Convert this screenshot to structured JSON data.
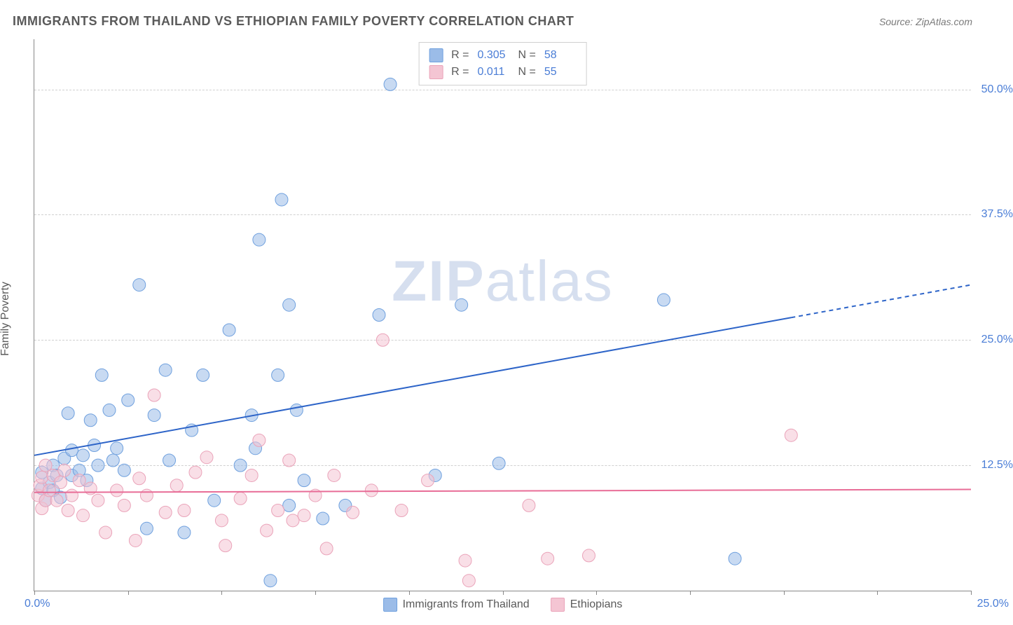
{
  "title": "IMMIGRANTS FROM THAILAND VS ETHIOPIAN FAMILY POVERTY CORRELATION CHART",
  "source": "Source: ZipAtlas.com",
  "watermark_bold": "ZIP",
  "watermark_rest": "atlas",
  "y_axis_label": "Family Poverty",
  "chart": {
    "type": "scatter",
    "background_color": "#ffffff",
    "grid_color": "#d0d0d0",
    "axis_color": "#888888",
    "tick_font_color": "#4a7dd6",
    "label_font_color": "#5a5a5a",
    "title_font_color": "#5a5a5a",
    "title_fontsize": 18,
    "label_fontsize": 16,
    "tick_fontsize": 16,
    "xlim": [
      0,
      25
    ],
    "ylim": [
      0,
      55
    ],
    "x_tick_step": 2.5,
    "y_ticks": [
      12.5,
      25.0,
      37.5,
      50.0
    ],
    "x_min_label": "0.0%",
    "x_max_label": "25.0%",
    "y_tick_labels": [
      "12.5%",
      "25.0%",
      "37.5%",
      "50.0%"
    ],
    "marker_radius": 9,
    "marker_opacity": 0.55,
    "trend_line_width": 2,
    "series": [
      {
        "name": "Immigrants from Thailand",
        "color": "#9bbce8",
        "stroke": "#6fa0de",
        "trend_color": "#2d64c8",
        "R": "0.305",
        "N": "58",
        "trend": {
          "y_at_x0": 13.5,
          "y_at_x25": 30.5,
          "dash_from_x": 20.2
        },
        "points": [
          [
            0.2,
            10.2
          ],
          [
            0.2,
            11.8
          ],
          [
            0.3,
            9.0
          ],
          [
            0.4,
            10.8
          ],
          [
            0.5,
            12.5
          ],
          [
            0.5,
            10.0
          ],
          [
            0.6,
            11.5
          ],
          [
            0.7,
            9.3
          ],
          [
            0.8,
            13.2
          ],
          [
            0.9,
            17.7
          ],
          [
            1.0,
            11.5
          ],
          [
            1.0,
            14.0
          ],
          [
            1.2,
            12.0
          ],
          [
            1.3,
            13.5
          ],
          [
            1.4,
            11.0
          ],
          [
            1.5,
            17.0
          ],
          [
            1.6,
            14.5
          ],
          [
            1.7,
            12.5
          ],
          [
            1.8,
            21.5
          ],
          [
            2.0,
            18.0
          ],
          [
            2.1,
            13.0
          ],
          [
            2.2,
            14.2
          ],
          [
            2.4,
            12.0
          ],
          [
            2.5,
            19.0
          ],
          [
            2.8,
            30.5
          ],
          [
            3.0,
            6.2
          ],
          [
            3.2,
            17.5
          ],
          [
            3.5,
            22.0
          ],
          [
            3.6,
            13.0
          ],
          [
            4.0,
            5.8
          ],
          [
            4.2,
            16.0
          ],
          [
            4.5,
            21.5
          ],
          [
            4.8,
            9.0
          ],
          [
            5.2,
            26.0
          ],
          [
            5.5,
            12.5
          ],
          [
            5.8,
            17.5
          ],
          [
            5.9,
            14.2
          ],
          [
            6.0,
            35.0
          ],
          [
            6.3,
            1.0
          ],
          [
            6.5,
            21.5
          ],
          [
            6.6,
            39.0
          ],
          [
            6.8,
            8.5
          ],
          [
            6.8,
            28.5
          ],
          [
            7.0,
            18.0
          ],
          [
            7.2,
            11.0
          ],
          [
            7.7,
            7.2
          ],
          [
            8.3,
            8.5
          ],
          [
            9.2,
            27.5
          ],
          [
            9.5,
            50.5
          ],
          [
            10.7,
            11.5
          ],
          [
            11.4,
            28.5
          ],
          [
            12.4,
            12.7
          ],
          [
            16.8,
            29.0
          ],
          [
            18.7,
            3.2
          ]
        ]
      },
      {
        "name": "Ethiopians",
        "color": "#f4c5d3",
        "stroke": "#eaa3b9",
        "trend_color": "#e86d97",
        "R": "0.011",
        "N": "55",
        "trend": {
          "y_at_x0": 9.8,
          "y_at_x25": 10.1,
          "dash_from_x": 25
        },
        "points": [
          [
            0.1,
            9.5
          ],
          [
            0.15,
            10.5
          ],
          [
            0.2,
            11.3
          ],
          [
            0.2,
            8.2
          ],
          [
            0.3,
            12.5
          ],
          [
            0.3,
            9.0
          ],
          [
            0.4,
            10.0
          ],
          [
            0.5,
            11.5
          ],
          [
            0.6,
            9.0
          ],
          [
            0.7,
            10.8
          ],
          [
            0.8,
            12.0
          ],
          [
            0.9,
            8.0
          ],
          [
            1.0,
            9.5
          ],
          [
            1.2,
            11.0
          ],
          [
            1.3,
            7.5
          ],
          [
            1.5,
            10.2
          ],
          [
            1.7,
            9.0
          ],
          [
            1.9,
            5.8
          ],
          [
            2.2,
            10.0
          ],
          [
            2.4,
            8.5
          ],
          [
            2.7,
            5.0
          ],
          [
            2.8,
            11.2
          ],
          [
            3.0,
            9.5
          ],
          [
            3.2,
            19.5
          ],
          [
            3.5,
            7.8
          ],
          [
            3.8,
            10.5
          ],
          [
            4.0,
            8.0
          ],
          [
            4.3,
            11.8
          ],
          [
            4.6,
            13.3
          ],
          [
            5.0,
            7.0
          ],
          [
            5.1,
            4.5
          ],
          [
            5.5,
            9.2
          ],
          [
            5.8,
            11.5
          ],
          [
            6.0,
            15.0
          ],
          [
            6.2,
            6.0
          ],
          [
            6.5,
            8.0
          ],
          [
            6.8,
            13.0
          ],
          [
            6.9,
            7.0
          ],
          [
            7.2,
            7.5
          ],
          [
            7.5,
            9.5
          ],
          [
            7.8,
            4.2
          ],
          [
            8.0,
            11.5
          ],
          [
            8.5,
            7.8
          ],
          [
            9.0,
            10.0
          ],
          [
            9.3,
            25.0
          ],
          [
            9.8,
            8.0
          ],
          [
            10.5,
            11.0
          ],
          [
            11.5,
            3.0
          ],
          [
            11.6,
            1.0
          ],
          [
            13.2,
            8.5
          ],
          [
            13.7,
            3.2
          ],
          [
            14.8,
            3.5
          ],
          [
            20.2,
            15.5
          ]
        ]
      }
    ]
  }
}
